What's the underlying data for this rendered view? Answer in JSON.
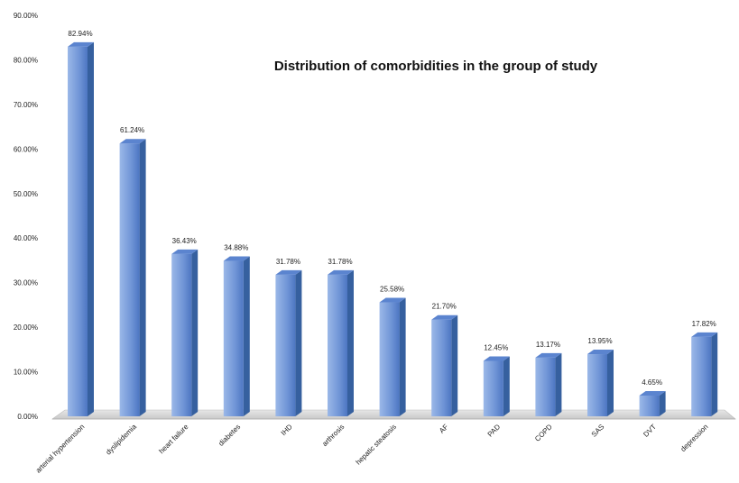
{
  "chart_data": {
    "type": "bar",
    "title": "Distribution of comorbidities in the group of study",
    "xlabel": "",
    "ylabel": "",
    "categories": [
      "arterial hypertension",
      "dyslipidemia",
      "heart failure",
      "diabetes",
      "IHD",
      "arthrosis",
      "hepatic steatosis",
      "AF",
      "PAD",
      "COPD",
      "SAS",
      "DVT",
      "depression"
    ],
    "values": [
      82.94,
      61.24,
      36.43,
      34.88,
      31.78,
      31.78,
      25.58,
      21.7,
      12.45,
      13.17,
      13.95,
      4.65,
      17.82
    ],
    "data_labels": [
      "82.94%",
      "61.24%",
      "36.43%",
      "34.88%",
      "31.78%",
      "31.78%",
      "25.58%",
      "21.70%",
      "12.45%",
      "13.17%",
      "13.95%",
      "4.65%",
      "17.82%"
    ],
    "yticks": [
      "0.00%",
      "10.00%",
      "20.00%",
      "30.00%",
      "40.00%",
      "50.00%",
      "60.00%",
      "70.00%",
      "80.00%",
      "90.00%"
    ],
    "ylim": [
      0,
      90
    ],
    "grid": false,
    "legend": "none",
    "style": "3d-column",
    "colors": {
      "bar_light": "#a9c3ec",
      "bar_mid": "#5b84cf",
      "bar_dark": "#36609f",
      "floor": "#d9d9d9"
    }
  }
}
